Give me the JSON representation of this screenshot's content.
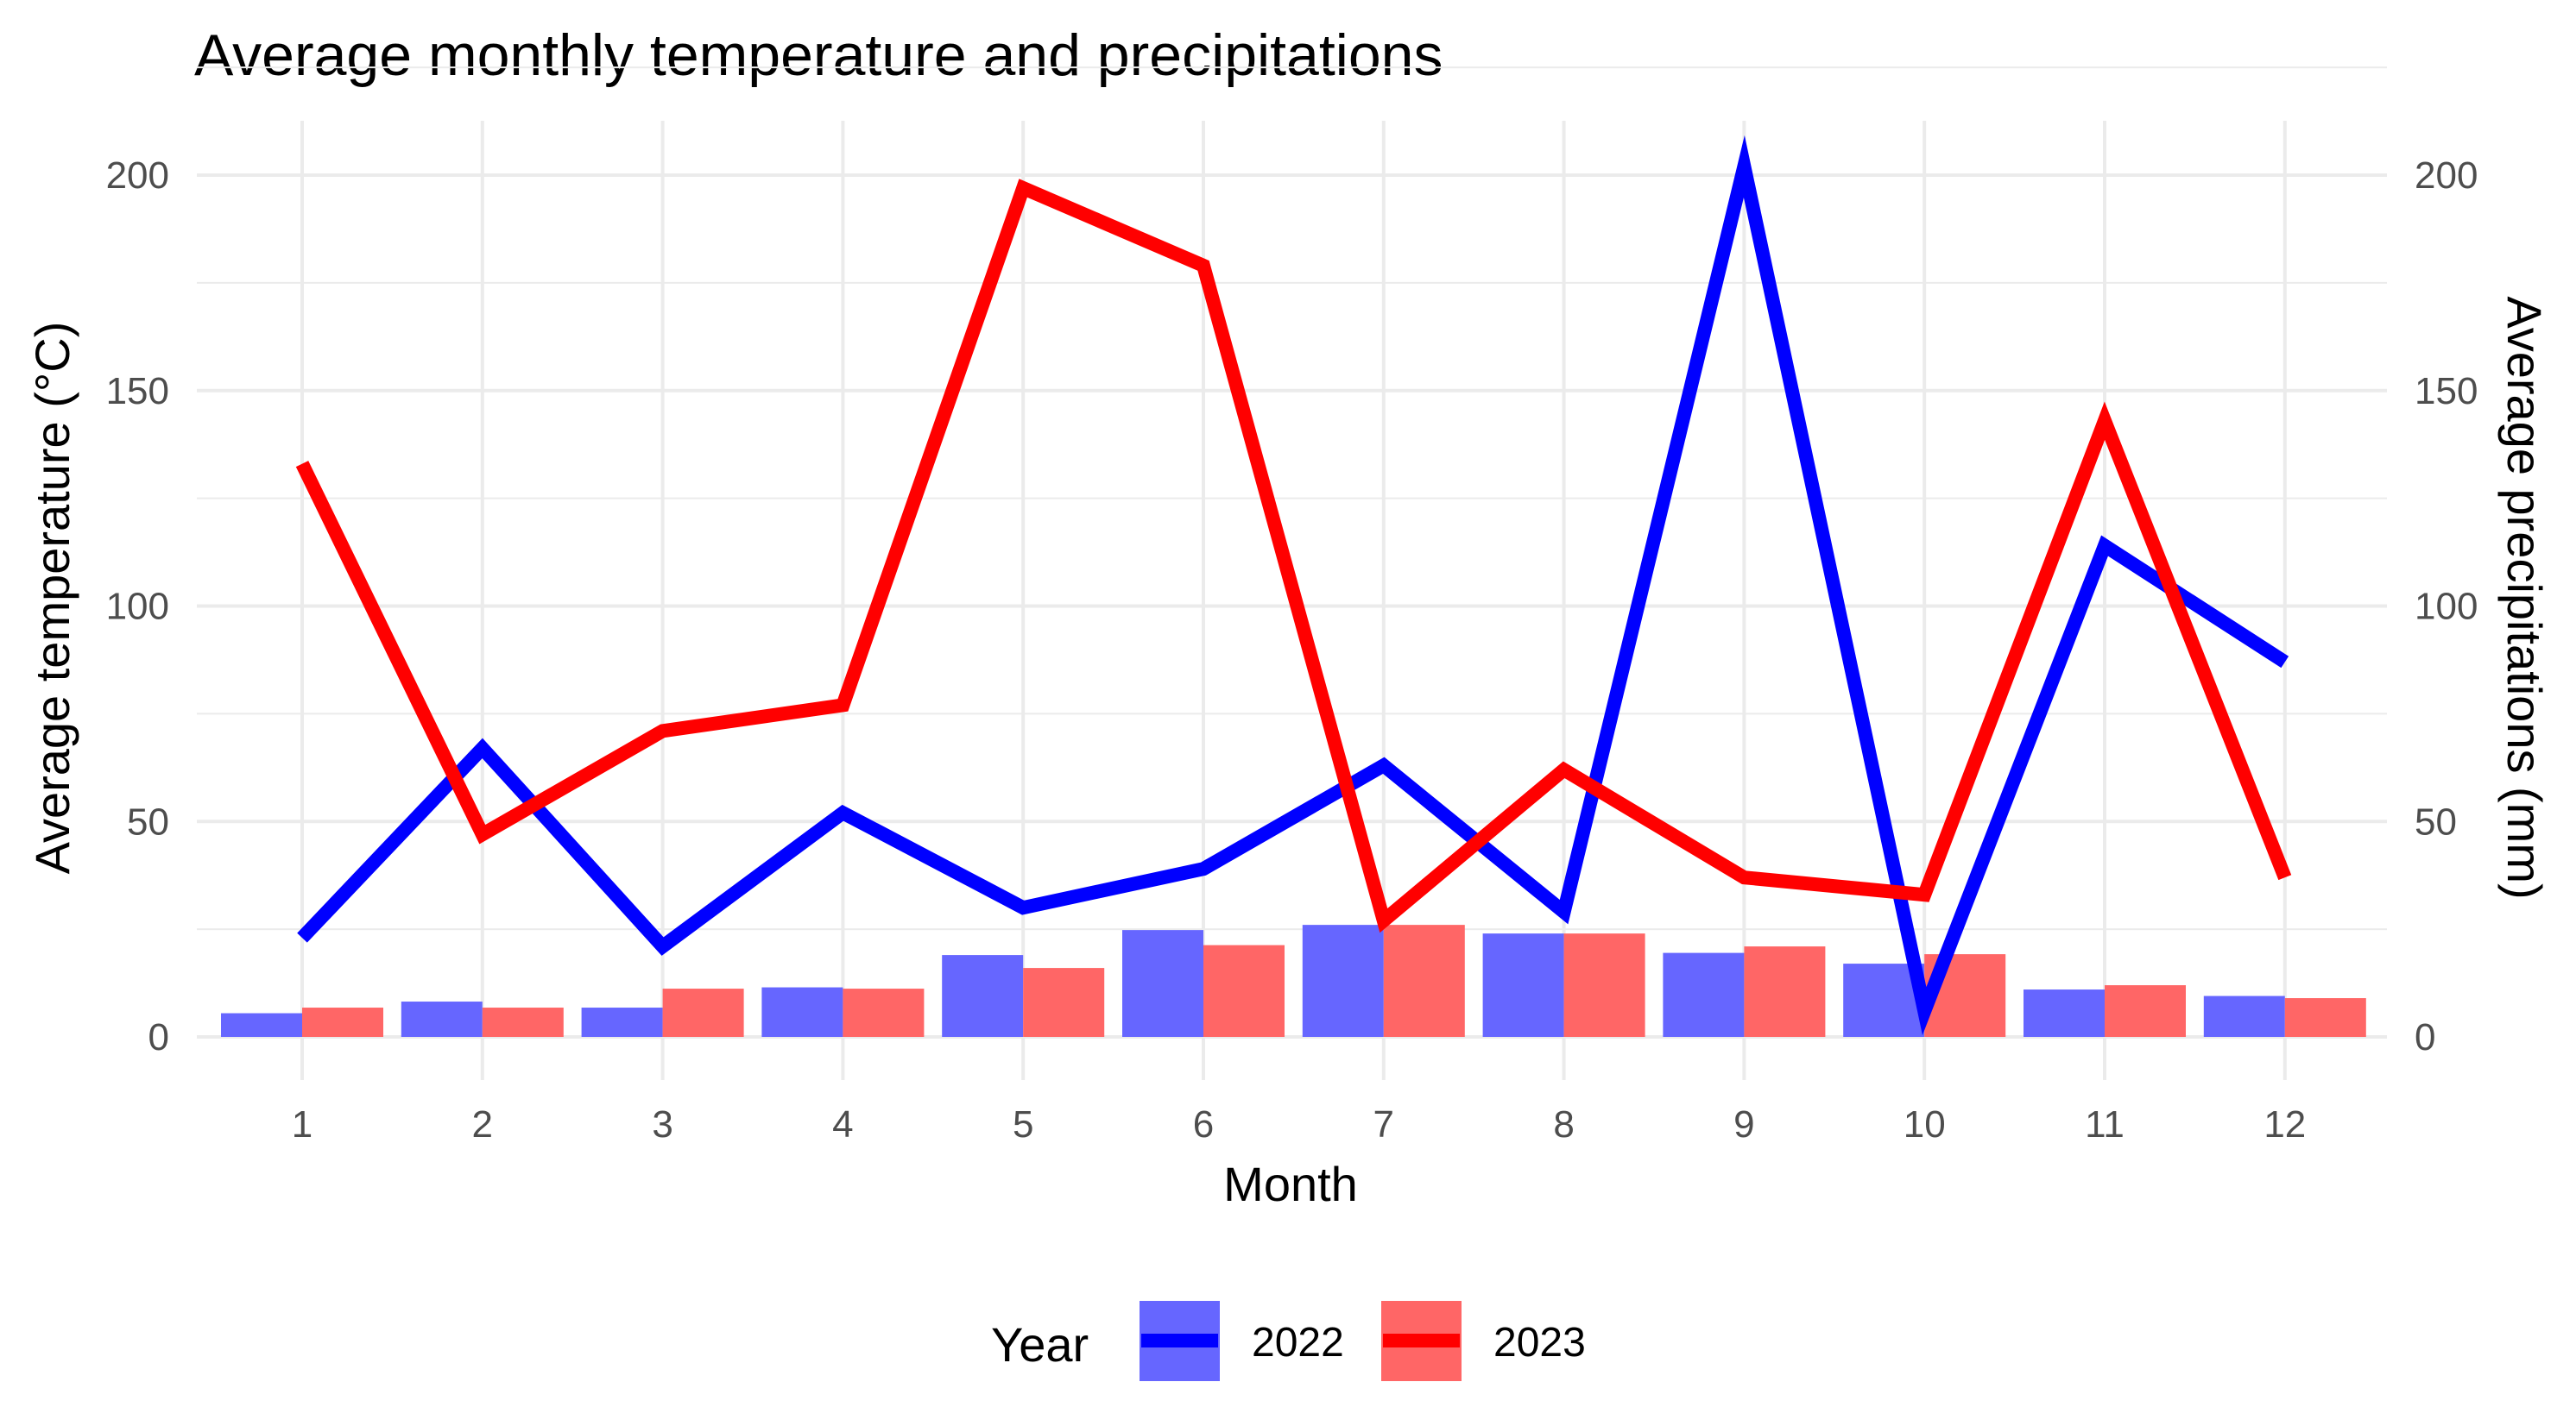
{
  "chart_data": {
    "type": "bar+line",
    "title": "Average monthly temperature and precipitations",
    "xlabel": "Month",
    "ylabel_left": "Average temperature (°C)",
    "ylabel_right": "Average precipitations (mm)",
    "categories": [
      "1",
      "2",
      "3",
      "4",
      "5",
      "6",
      "7",
      "8",
      "9",
      "10",
      "11",
      "12"
    ],
    "ylim": [
      0,
      200
    ],
    "yticks": [
      "0",
      "50",
      "100",
      "150",
      "200"
    ],
    "grid": true,
    "legend": {
      "title": "Year",
      "position": "bottom",
      "entries": [
        "2022",
        "2023"
      ]
    },
    "bar_series": [
      {
        "name": "2022",
        "color": "#6666ff",
        "values": [
          5.5,
          8.2,
          6.8,
          11.5,
          19.0,
          24.8,
          26.0,
          24.0,
          19.5,
          17.0,
          11.0,
          9.5
        ]
      },
      {
        "name": "2023",
        "color": "#ff6666",
        "values": [
          6.8,
          6.8,
          11.2,
          11.2,
          16.0,
          21.3,
          26.0,
          24.0,
          21.0,
          19.2,
          12.0,
          9.0
        ]
      }
    ],
    "line_series": [
      {
        "name": "2022",
        "color": "#0000ff",
        "values": [
          23,
          67,
          21,
          52,
          30,
          39,
          63,
          29,
          202,
          6,
          114,
          87
        ]
      },
      {
        "name": "2023",
        "color": "#ff0000",
        "values": [
          133,
          47,
          71,
          77,
          197,
          179,
          27,
          62,
          37,
          33,
          143,
          37
        ]
      }
    ]
  }
}
